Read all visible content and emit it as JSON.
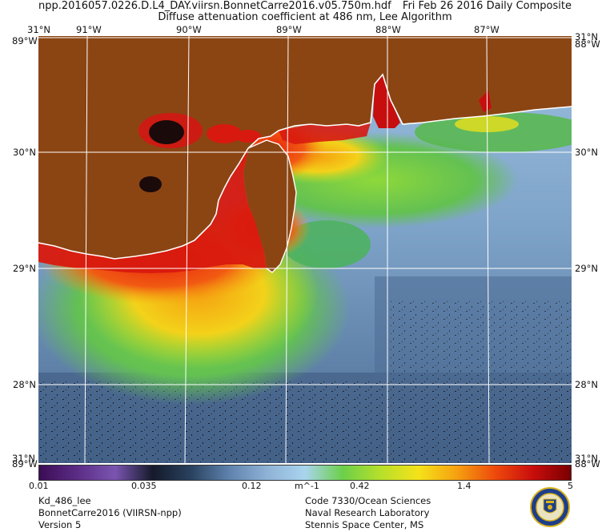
{
  "header": {
    "filename": "npp.2016057.0226.D.L4_DAY.viirsn.BonnetCarre2016.v05.750m.hdf",
    "date": "Fri Feb 26 2016 Daily Composite",
    "product": "Diffuse attenuation coefficient at 486 nm, Lee Algorithm"
  },
  "map": {
    "lon_labels_top": [
      "91°W",
      "90°W",
      "89°W",
      "88°W",
      "87°W"
    ],
    "corner_lat_top": "31°N",
    "corner_lon_top_left": "89°W",
    "corner_lon_top_right": "88°W",
    "lat_labels": [
      "30°N",
      "29°N",
      "28°N"
    ],
    "corner_lat_bottom": "31°N",
    "corner_lon_bottom_left": "89°W",
    "corner_lon_bottom_right": "88°W",
    "colors": {
      "land": "#8b4513",
      "grid": "#ffffff",
      "ocean_low": "#5e7fa8",
      "ocean_mid": "#90b4d4",
      "turbid_high": "#d8190f"
    }
  },
  "colorbar": {
    "ticks": [
      "0.01",
      "0.035",
      "0.12",
      "m^-1",
      "0.42",
      "1.4",
      "5"
    ],
    "colors": [
      "#3b0d55",
      "#5b2c85",
      "#7a55b0",
      "#141a2a",
      "#2a4260",
      "#5e82ad",
      "#8fb2d6",
      "#a9d4ee",
      "#6ccf4a",
      "#b7e02a",
      "#f5e21a",
      "#f5a010",
      "#ee4a0c",
      "#c80d0d",
      "#7a0000"
    ]
  },
  "footer": {
    "left": [
      "Kd_486_lee",
      "BonnetCarre2016 (VIIRSN-npp)",
      "Version 5"
    ],
    "right": [
      "Code 7330/Ocean Sciences",
      "Naval Research Laboratory",
      "Stennis Space Center, MS"
    ]
  }
}
